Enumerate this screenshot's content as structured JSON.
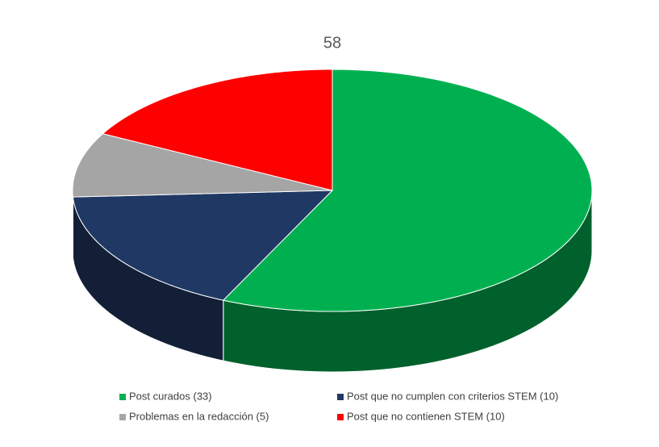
{
  "chart_data": {
    "type": "pie",
    "title": "58",
    "categories": [
      "Post curados (33)",
      "Post que no cumplen con criterios STEM (10)",
      "Problemas en la redacción (5)",
      "Post que no contienen STEM (10)"
    ],
    "values": [
      33,
      10,
      5,
      10
    ],
    "colors": [
      "#00b050",
      "#203864",
      "#a5a5a5",
      "#ff0000"
    ],
    "legend": "bottom"
  }
}
